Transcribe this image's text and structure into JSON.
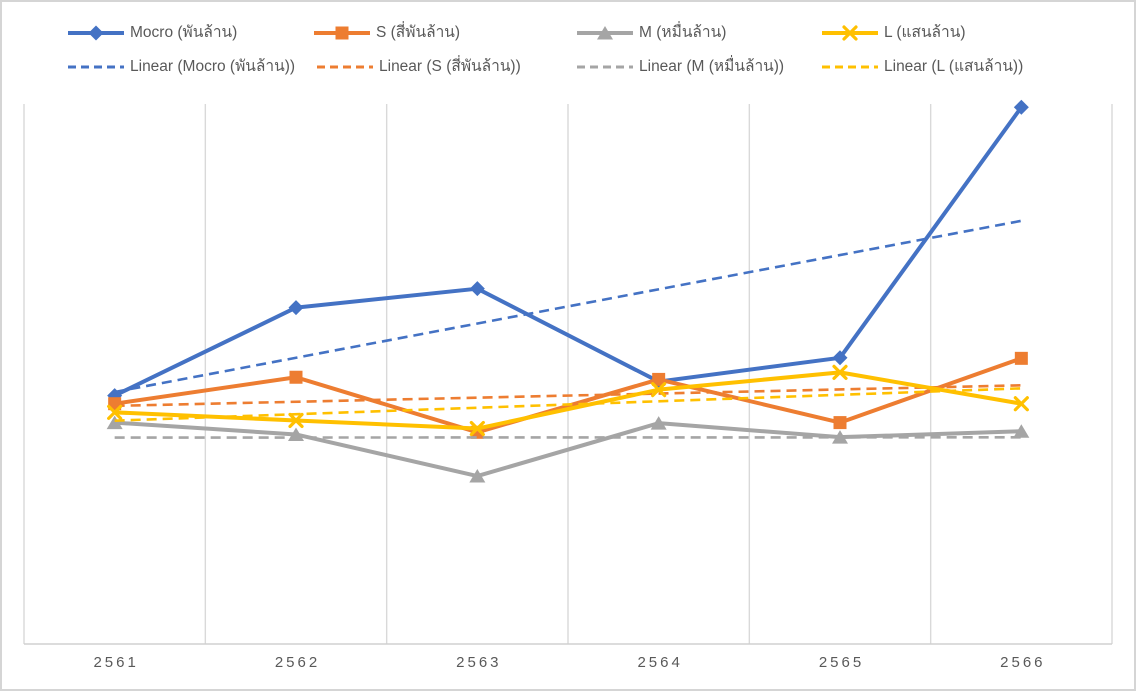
{
  "frame": {
    "background": "#ffffff",
    "border_color": "#d5d5d5"
  },
  "chart_data": {
    "type": "line",
    "title": "",
    "xlabel": "",
    "ylabel": "",
    "categories": [
      "2561",
      "2562",
      "2563",
      "2564",
      "2565",
      "2566"
    ],
    "series": [
      {
        "id": "mocro",
        "name": "Mocro (พันล้าน)",
        "color": "#4472C4",
        "marker": "diamond",
        "values": [
          46.0,
          62.3,
          65.8,
          48.6,
          53.0,
          99.4
        ]
      },
      {
        "id": "s",
        "name": "S (สี่พันล้าน)",
        "color": "#ED7D31",
        "marker": "square",
        "values": [
          44.5,
          49.4,
          39.2,
          49.0,
          41.0,
          52.9
        ]
      },
      {
        "id": "m",
        "name": "M (หมื่นล้าน)",
        "color": "#A5A5A5",
        "marker": "triangle",
        "values": [
          41.0,
          38.8,
          31.1,
          40.9,
          38.3,
          39.4
        ]
      },
      {
        "id": "l",
        "name": "L (แสนล้าน)",
        "color": "#FFC000",
        "marker": "x",
        "values": [
          42.9,
          41.4,
          39.9,
          47.1,
          50.3,
          44.5
        ]
      }
    ],
    "trendlines": [
      {
        "name": "Linear (Mocro (พันล้าน))",
        "series_index": 0,
        "style": "dashed",
        "fit": "linear"
      },
      {
        "name": "Linear (S (สี่พันล้าน))",
        "series_index": 1,
        "style": "dashed",
        "fit": "linear"
      },
      {
        "name": "Linear (M (หมื่นล้าน))",
        "series_index": 2,
        "style": "dashed",
        "fit": "linear"
      },
      {
        "name": "Linear (L (แสนล้าน))",
        "series_index": 3,
        "style": "dashed",
        "fit": "linear"
      }
    ],
    "ylim": [
      0,
      100
    ],
    "y_axis_labels_visible": false,
    "grid": "vertical",
    "legend_position": "top",
    "colors": {
      "gridline": "#D9D9D9",
      "axis_line": "#D0D0D0",
      "axis_text": "#595959",
      "legend_text": "#595959"
    }
  }
}
